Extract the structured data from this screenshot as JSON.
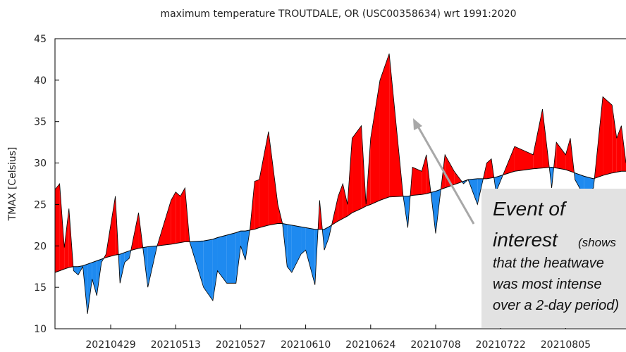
{
  "chart_data": {
    "type": "anomaly-fill",
    "title": "maximum temperature TROUTDALE, OR (USC00358634) wrt 1991:2020",
    "y_label": "TMAX [Celsius]",
    "x": [
      "20210417",
      "20210418",
      "20210419",
      "20210420",
      "20210421",
      "20210422",
      "20210423",
      "20210424",
      "20210425",
      "20210426",
      "20210427",
      "20210428",
      "20210430",
      "20210501",
      "20210502",
      "20210503",
      "20210505",
      "20210507",
      "20210509",
      "20210512",
      "20210513",
      "20210514",
      "20210515",
      "20210516",
      "20210519",
      "20210521",
      "20210522",
      "20210524",
      "20210526",
      "20210527",
      "20210528",
      "20210529",
      "20210530",
      "20210531",
      "20210602",
      "20210604",
      "20210605",
      "20210606",
      "20210607",
      "20210609",
      "20210610",
      "20210612",
      "20210613",
      "20210614",
      "20210615",
      "20210617",
      "20210618",
      "20210619",
      "20210620",
      "20210622",
      "20210623",
      "20210624",
      "20210626",
      "20210628",
      "20210701",
      "20210702",
      "20210703",
      "20210705",
      "20210706",
      "20210708",
      "20210710",
      "20210712",
      "20210714",
      "20210715",
      "20210717",
      "20210719",
      "20210720",
      "20210721",
      "20210725",
      "20210729",
      "20210731",
      "20210802",
      "20210803",
      "20210805",
      "20210806",
      "20210807",
      "20210809",
      "20210811",
      "20210813",
      "20210815",
      "20210816",
      "20210817",
      "20210818"
    ],
    "series": [
      {
        "color": "#000000",
        "values": [
          26.8,
          27.5,
          19.8,
          24.5,
          17.0,
          16.5,
          17.5,
          11.8,
          16.0,
          14.0,
          18.0,
          19.0,
          26.0,
          15.5,
          18.0,
          18.5,
          24.0,
          15.0,
          20.0,
          25.5,
          26.5,
          26.0,
          27.0,
          20.5,
          15.0,
          13.4,
          17.0,
          15.5,
          15.5,
          20.0,
          18.3,
          22.0,
          27.8,
          28.0,
          33.8,
          25.0,
          22.7,
          17.5,
          16.8,
          19.0,
          19.5,
          15.3,
          25.5,
          19.5,
          21.0,
          26.0,
          27.5,
          25.0,
          33.0,
          34.5,
          25.0,
          33.0,
          40.0,
          43.2,
          26.0,
          22.2,
          29.5,
          29.0,
          31.0,
          21.5,
          31.0,
          29.0,
          27.5,
          28.0,
          25.0,
          30.0,
          30.5,
          26.5,
          32.0,
          31.0,
          36.5,
          27.0,
          32.5,
          31.0,
          33.0,
          28.0,
          26.0,
          27.0,
          38.0,
          37.0,
          33.0,
          34.5,
          30.0
        ]
      },
      {
        "color": "#000000",
        "values": [
          16.8,
          17.0,
          17.2,
          17.4,
          17.5,
          17.5,
          17.6,
          17.8,
          18.0,
          18.2,
          18.4,
          18.6,
          18.9,
          19.0,
          19.2,
          19.4,
          19.7,
          19.9,
          20.0,
          20.2,
          20.3,
          20.4,
          20.5,
          20.5,
          20.6,
          20.8,
          21.0,
          21.3,
          21.6,
          21.8,
          21.8,
          21.9,
          22.0,
          22.2,
          22.5,
          22.7,
          22.7,
          22.6,
          22.5,
          22.3,
          22.2,
          22.0,
          22.0,
          22.0,
          22.3,
          23.0,
          23.3,
          23.6,
          24.0,
          24.5,
          24.8,
          25.0,
          25.5,
          25.9,
          26.0,
          26.0,
          26.1,
          26.2,
          26.3,
          26.6,
          27.0,
          27.4,
          27.8,
          28.0,
          28.1,
          28.1,
          28.2,
          28.3,
          29.0,
          29.3,
          29.4,
          29.5,
          29.4,
          29.2,
          29.0,
          28.8,
          28.4,
          28.1,
          28.5,
          28.8,
          28.9,
          29.0,
          29.0
        ]
      }
    ],
    "above_color": "#ff0000",
    "below_color": "#1e8af0",
    "xlim": [
      "20210417",
      "20210818"
    ],
    "xticks": [
      "20210429",
      "20210513",
      "20210527",
      "20210610",
      "20210624",
      "20210708",
      "20210722",
      "20210805"
    ],
    "ylim": [
      10,
      45
    ],
    "yticks": [
      10,
      15,
      20,
      25,
      30,
      35,
      40,
      45
    ],
    "annotation": {
      "lines": [
        "Event of",
        "interest",
        "(shows",
        "that the heatwave",
        "was most intense",
        "over a 2-day period)"
      ]
    }
  }
}
